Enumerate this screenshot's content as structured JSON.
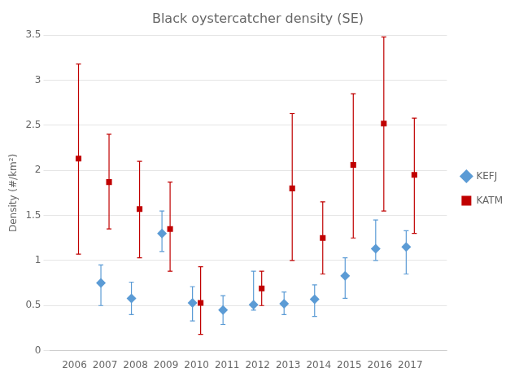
{
  "chart_data": {
    "type": "scatter",
    "title": "Black oystercatcher density (SE)",
    "ylabel": "Density (#/km²)",
    "x": [
      2006,
      2007,
      2008,
      2009,
      2010,
      2011,
      2012,
      2013,
      2014,
      2015,
      2016,
      2017
    ],
    "xlim": [
      2005.2,
      2018.2
    ],
    "xticks": [
      2006,
      2007,
      2008,
      2009,
      2010,
      2011,
      2012,
      2013,
      2014,
      2015,
      2016,
      2017
    ],
    "ylim": [
      0,
      3.5
    ],
    "yticks": [
      0,
      0.5,
      1.0,
      1.5,
      2.0,
      2.5,
      3.0,
      3.5
    ],
    "grid": true,
    "legend": "right",
    "series": [
      {
        "name": "KEFJ",
        "color": "#5B9BD5",
        "marker": "diamond",
        "values": [
          null,
          0.75,
          0.58,
          1.3,
          0.53,
          0.45,
          0.51,
          0.52,
          0.57,
          0.83,
          1.13,
          1.15
        ],
        "upper": [
          null,
          0.95,
          0.76,
          1.55,
          0.71,
          0.61,
          0.88,
          0.65,
          0.73,
          1.03,
          1.45,
          1.33
        ],
        "lower": [
          null,
          0.5,
          0.4,
          1.1,
          0.33,
          0.29,
          0.45,
          0.4,
          0.38,
          0.58,
          1.0,
          0.85
        ]
      },
      {
        "name": "KATM",
        "color": "#C00000",
        "marker": "square",
        "values": [
          2.13,
          1.87,
          1.57,
          1.35,
          0.53,
          null,
          0.69,
          1.8,
          1.25,
          2.06,
          2.52,
          1.95
        ],
        "upper": [
          3.18,
          2.4,
          2.1,
          1.87,
          0.93,
          null,
          0.88,
          2.63,
          1.65,
          2.85,
          3.48,
          2.58
        ],
        "lower": [
          1.07,
          1.35,
          1.03,
          0.88,
          0.18,
          null,
          0.5,
          1.0,
          0.85,
          1.25,
          1.55,
          1.3
        ]
      }
    ]
  }
}
